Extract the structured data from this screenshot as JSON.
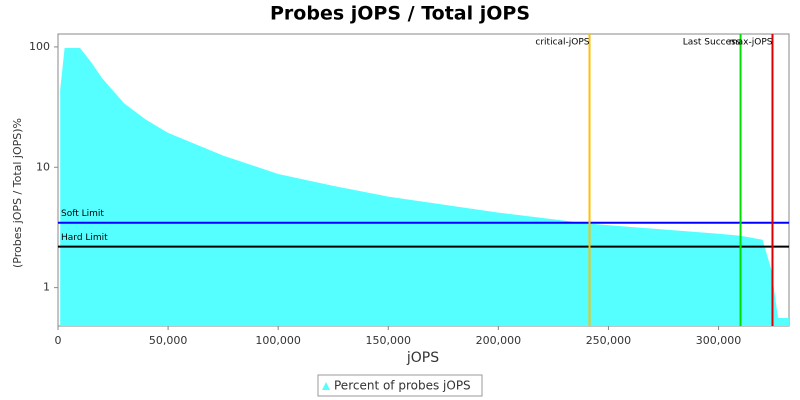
{
  "chart_data": {
    "type": "area",
    "title": "Probes jOPS / Total jOPS",
    "x_label": "jOPS",
    "y_label": "(Probes jOPS / Total jOPS)%",
    "log_y": true,
    "xlim": [
      0,
      332000
    ],
    "ylim": [
      0.48,
      128
    ],
    "xticks": [
      0,
      {
        "value": 50000,
        "label": "50,000"
      },
      {
        "value": 100000,
        "label": "100,000"
      },
      {
        "value": 150000,
        "label": "150,000"
      },
      {
        "value": 200000,
        "label": "200,000"
      },
      {
        "value": 250000,
        "label": "250,000"
      },
      {
        "value": 300000,
        "label": "300,000"
      }
    ],
    "yticks": [
      1,
      10,
      100
    ],
    "series": [
      {
        "name": "Percent of probes jOPS",
        "color": "#55ffff",
        "x": [
          1000,
          3000,
          10000,
          15000,
          20000,
          30000,
          40000,
          50000,
          75000,
          100000,
          125000,
          150000,
          200000,
          241000,
          300000,
          310000,
          320000,
          324000,
          327000,
          332000
        ],
        "values": [
          44,
          98,
          98,
          75,
          55,
          34,
          24.8,
          19.3,
          12.5,
          8.8,
          7.0,
          5.7,
          4.2,
          3.4,
          2.8,
          2.7,
          2.5,
          1.4,
          0.56,
          0.56
        ]
      }
    ],
    "hlines": [
      {
        "label": "Soft Limit",
        "value": 3.46,
        "color": "#0000ff"
      },
      {
        "label": "Hard Limit",
        "value": 2.19,
        "color": "#000000"
      }
    ],
    "vlines": [
      {
        "label": "critical-jOPS",
        "value": 241400,
        "color": "#ffc000"
      },
      {
        "label": "Last Success",
        "value": 310000,
        "color": "#00dd00"
      },
      {
        "label": "max-jOPS",
        "value": 324500,
        "color": "#dd0000"
      }
    ]
  }
}
